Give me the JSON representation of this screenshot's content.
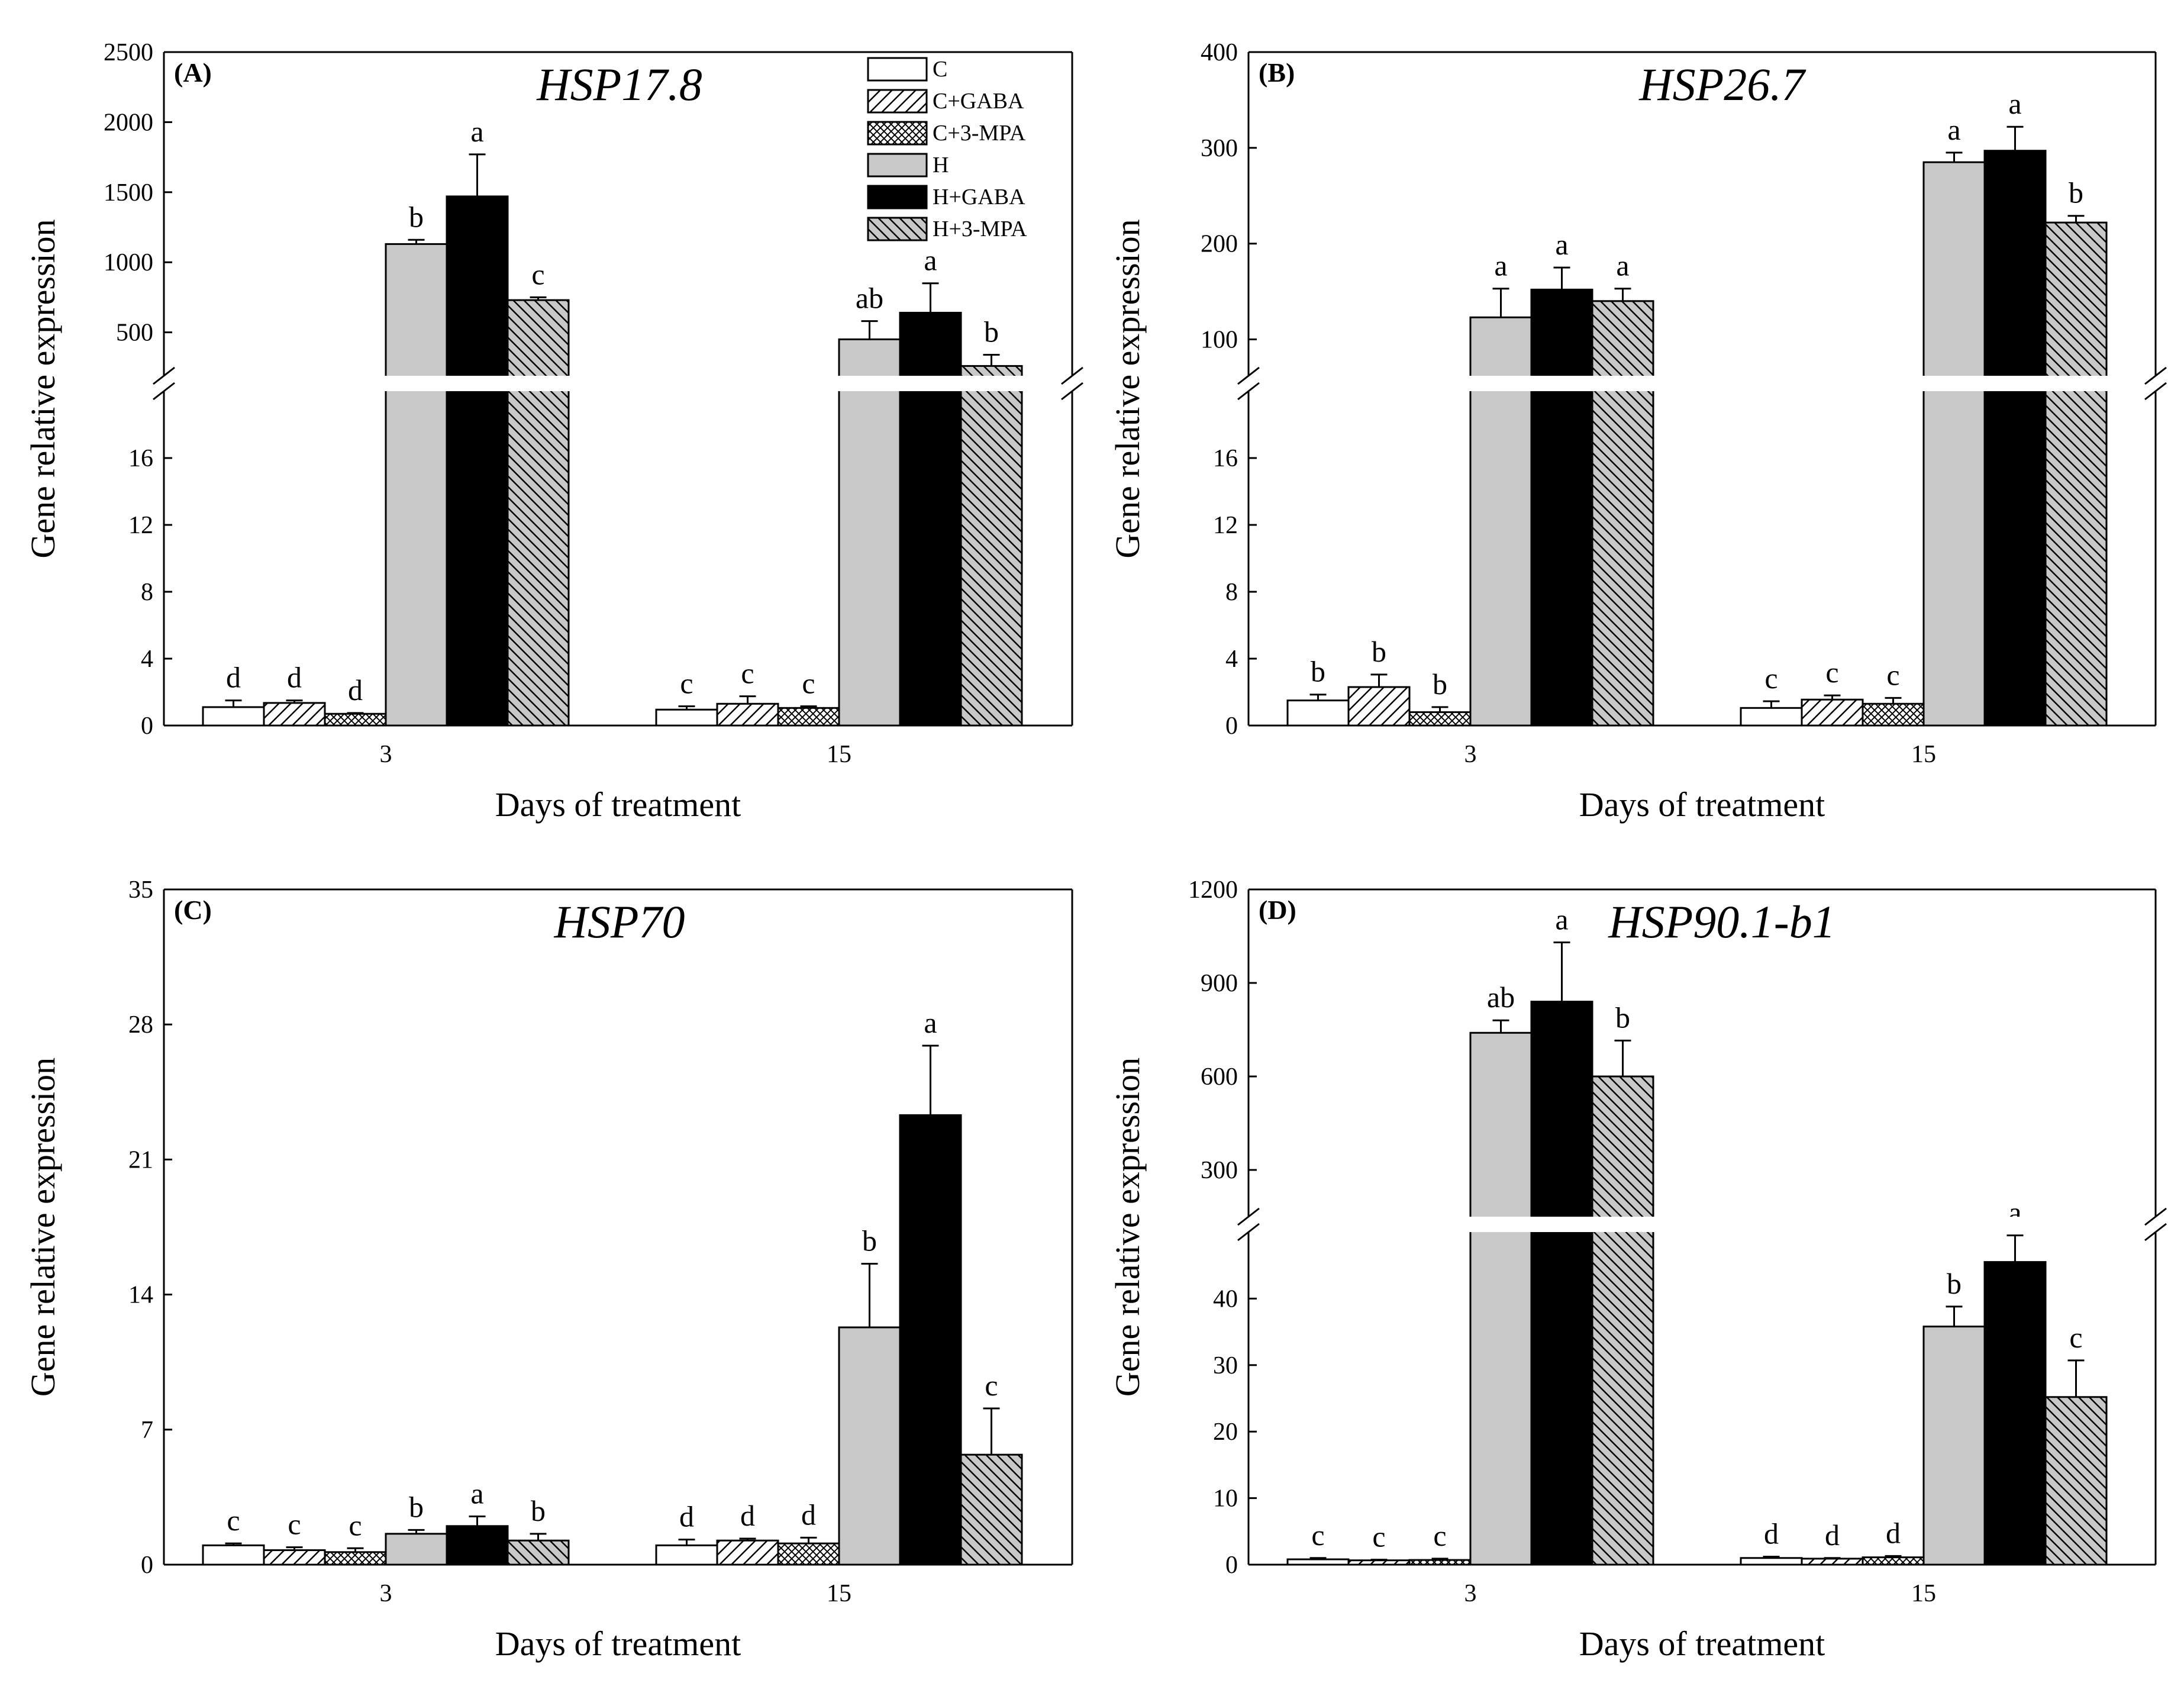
{
  "figure": {
    "legend": [
      {
        "name": "C",
        "pattern": "fill-white"
      },
      {
        "name": "C+GABA",
        "pattern": "fill-diag"
      },
      {
        "name": "C+3-MPA",
        "pattern": "fill-cross"
      },
      {
        "name": "H",
        "pattern": "fill-gray"
      },
      {
        "name": "H+GABA",
        "pattern": "fill-black"
      },
      {
        "name": "H+3-MPA",
        "pattern": "fill-graydiag"
      }
    ],
    "colors": {
      "gray": "#c8c8c8",
      "black": "#000000",
      "white": "#ffffff",
      "axis": "#000000"
    }
  },
  "chart_data": [
    {
      "id": "A",
      "type": "bar",
      "panel_label": "(A)",
      "title": "HSP17.8",
      "xlabel": "Days of treatment",
      "ylabel": "Gene relative expression",
      "categories": [
        "3",
        "15"
      ],
      "axis_break": true,
      "lower": {
        "ylim": [
          0,
          20
        ],
        "ticks": [
          0,
          4,
          8,
          12,
          16
        ],
        "tick_labels": [
          "0",
          "4",
          "8",
          "12",
          "16"
        ]
      },
      "upper": {
        "ylim": [
          190,
          2500
        ],
        "ticks": [
          500,
          1000,
          1500,
          2000,
          2500
        ],
        "tick_labels": [
          "500",
          "1000",
          "1500",
          "2000",
          "2500"
        ]
      },
      "series": [
        {
          "name": "C",
          "values": [
            1.1,
            0.95
          ],
          "errors": [
            0.4,
            0.2
          ],
          "letters": [
            "d",
            "c"
          ]
        },
        {
          "name": "C+GABA",
          "values": [
            1.35,
            1.3
          ],
          "errors": [
            0.15,
            0.45
          ],
          "letters": [
            "d",
            "c"
          ]
        },
        {
          "name": "C+3-MPA",
          "values": [
            0.7,
            1.05
          ],
          "errors": [
            0.05,
            0.1
          ],
          "letters": [
            "d",
            "c"
          ]
        },
        {
          "name": "H",
          "values": [
            1130,
            450
          ],
          "errors": [
            30,
            130
          ],
          "letters": [
            "b",
            "ab"
          ]
        },
        {
          "name": "H+GABA",
          "values": [
            1470,
            640
          ],
          "errors": [
            300,
            210
          ],
          "letters": [
            "a",
            "a"
          ]
        },
        {
          "name": "H+3-MPA",
          "values": [
            730,
            260
          ],
          "errors": [
            20,
            80
          ],
          "letters": [
            "c",
            "b"
          ]
        }
      ]
    },
    {
      "id": "B",
      "type": "bar",
      "panel_label": "(B)",
      "title": "HSP26.7",
      "xlabel": "Days of treatment",
      "ylabel": "Gene relative expression",
      "categories": [
        "3",
        "15"
      ],
      "axis_break": true,
      "lower": {
        "ylim": [
          0,
          20
        ],
        "ticks": [
          0,
          4,
          8,
          12,
          16
        ],
        "tick_labels": [
          "0",
          "4",
          "8",
          "12",
          "16"
        ]
      },
      "upper": {
        "ylim": [
          62,
          400
        ],
        "ticks": [
          100,
          200,
          300,
          400
        ],
        "tick_labels": [
          "100",
          "200",
          "300",
          "400"
        ]
      },
      "series": [
        {
          "name": "C",
          "values": [
            1.5,
            1.05
          ],
          "errors": [
            0.35,
            0.4
          ],
          "letters": [
            "b",
            "c"
          ]
        },
        {
          "name": "C+GABA",
          "values": [
            2.3,
            1.55
          ],
          "errors": [
            0.75,
            0.25
          ],
          "letters": [
            "b",
            "c"
          ]
        },
        {
          "name": "C+3-MPA",
          "values": [
            0.8,
            1.3
          ],
          "errors": [
            0.3,
            0.35
          ],
          "letters": [
            "b",
            "c"
          ]
        },
        {
          "name": "H",
          "values": [
            123,
            285
          ],
          "errors": [
            30,
            10
          ],
          "letters": [
            "a",
            "a"
          ]
        },
        {
          "name": "H+GABA",
          "values": [
            152,
            297
          ],
          "errors": [
            23,
            25
          ],
          "letters": [
            "a",
            "a"
          ]
        },
        {
          "name": "H+3-MPA",
          "values": [
            140,
            222
          ],
          "errors": [
            13,
            7
          ],
          "letters": [
            "a",
            "b"
          ]
        }
      ]
    },
    {
      "id": "C",
      "type": "bar",
      "panel_label": "(C)",
      "title": "HSP70",
      "xlabel": "Days of treatment",
      "ylabel": "Gene relative expression",
      "categories": [
        "3",
        "15"
      ],
      "axis_break": false,
      "lower": {
        "ylim": [
          0,
          35
        ],
        "ticks": [
          0,
          7,
          14,
          21,
          28,
          35
        ],
        "tick_labels": [
          "0",
          "7",
          "14",
          "21",
          "28",
          "35"
        ]
      },
      "series": [
        {
          "name": "C",
          "values": [
            1.0,
            1.0
          ],
          "errors": [
            0.1,
            0.3
          ],
          "letters": [
            "c",
            "d"
          ]
        },
        {
          "name": "C+GABA",
          "values": [
            0.75,
            1.25
          ],
          "errors": [
            0.15,
            0.1
          ],
          "letters": [
            "c",
            "d"
          ]
        },
        {
          "name": "C+3-MPA",
          "values": [
            0.65,
            1.1
          ],
          "errors": [
            0.2,
            0.3
          ],
          "letters": [
            "c",
            "d"
          ]
        },
        {
          "name": "H",
          "values": [
            1.6,
            12.3
          ],
          "errors": [
            0.2,
            3.3
          ],
          "letters": [
            "b",
            "b"
          ]
        },
        {
          "name": "H+GABA",
          "values": [
            2.0,
            23.3
          ],
          "errors": [
            0.5,
            3.6
          ],
          "letters": [
            "a",
            "a"
          ]
        },
        {
          "name": "H+3-MPA",
          "values": [
            1.25,
            5.7
          ],
          "errors": [
            0.35,
            2.4
          ],
          "letters": [
            "b",
            "c"
          ]
        }
      ]
    },
    {
      "id": "D",
      "type": "bar",
      "panel_label": "(D)",
      "title": "HSP90.1-b1",
      "xlabel": "Days of treatment",
      "ylabel": "Gene relative expression",
      "categories": [
        "3",
        "15"
      ],
      "axis_break": true,
      "lower": {
        "ylim": [
          0,
          50
        ],
        "ticks": [
          0,
          10,
          20,
          30,
          40
        ],
        "tick_labels": [
          "0",
          "10",
          "20",
          "30",
          "40"
        ]
      },
      "upper": {
        "ylim": [
          150,
          1200
        ],
        "ticks": [
          300,
          600,
          900,
          1200
        ],
        "tick_labels": [
          "300",
          "600",
          "900",
          "1200"
        ]
      },
      "series": [
        {
          "name": "C",
          "values": [
            0.8,
            1.0
          ],
          "errors": [
            0.2,
            0.2
          ],
          "letters": [
            "c",
            "d"
          ]
        },
        {
          "name": "C+GABA",
          "values": [
            0.65,
            0.9
          ],
          "errors": [
            0.1,
            0.1
          ],
          "letters": [
            "c",
            "d"
          ]
        },
        {
          "name": "C+3-MPA",
          "values": [
            0.7,
            1.1
          ],
          "errors": [
            0.2,
            0.2
          ],
          "letters": [
            "c",
            "d"
          ]
        },
        {
          "name": "H",
          "values": [
            740,
            35.8
          ],
          "errors": [
            40,
            3.0
          ],
          "letters": [
            "ab",
            "b"
          ]
        },
        {
          "name": "H+GABA",
          "values": [
            840,
            45.5
          ],
          "errors": [
            190,
            4.0
          ],
          "letters": [
            "a",
            "a"
          ]
        },
        {
          "name": "H+3-MPA",
          "values": [
            600,
            25.2
          ],
          "errors": [
            115,
            5.5
          ],
          "letters": [
            "b",
            "c"
          ]
        }
      ]
    }
  ]
}
